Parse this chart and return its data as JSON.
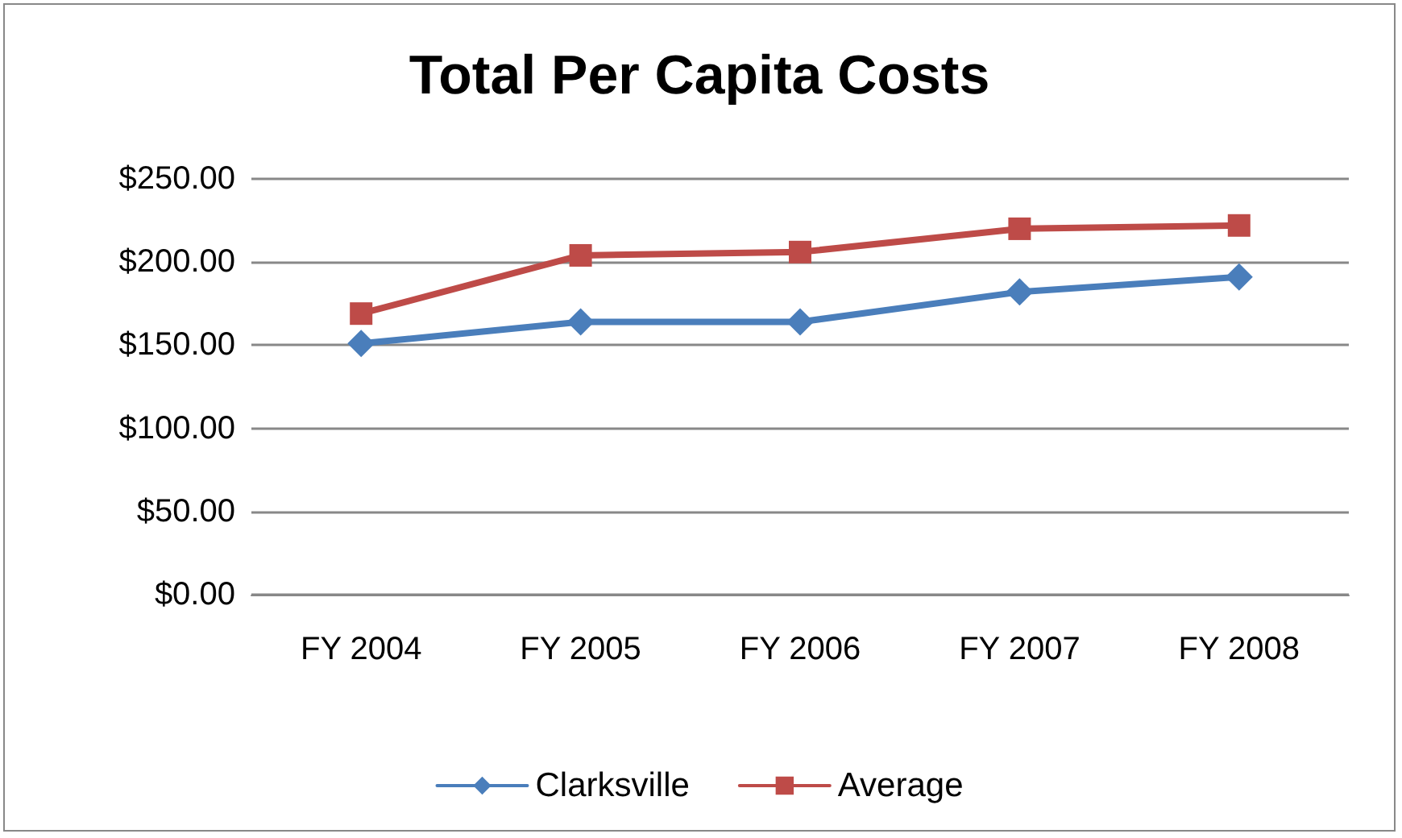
{
  "chart_data": {
    "type": "line",
    "title": "Total Per Capita Costs",
    "categories": [
      "FY 2004",
      "FY 2005",
      "FY 2006",
      "FY 2007",
      "FY 2008"
    ],
    "series": [
      {
        "name": "Clarksville",
        "color": "#4a7ebb",
        "marker": "diamond",
        "values": [
          151,
          164,
          164,
          182,
          191
        ]
      },
      {
        "name": "Average",
        "color": "#be4b48",
        "marker": "square",
        "values": [
          169,
          204,
          206,
          220,
          222
        ]
      }
    ],
    "ylim": [
      0,
      250
    ],
    "yticks": [
      {
        "value": 0,
        "label": "$0.00"
      },
      {
        "value": 50,
        "label": "$50.00"
      },
      {
        "value": 100,
        "label": "$100.00"
      },
      {
        "value": 150,
        "label": "$150.00"
      },
      {
        "value": 200,
        "label": "$200.00"
      },
      {
        "value": 250,
        "label": "$250.00"
      }
    ],
    "grid": "y",
    "legend": "bottom",
    "line_style": "solid"
  }
}
